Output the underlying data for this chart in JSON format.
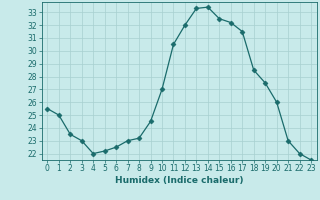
{
  "x": [
    0,
    1,
    2,
    3,
    4,
    5,
    6,
    7,
    8,
    9,
    10,
    11,
    12,
    13,
    14,
    15,
    16,
    17,
    18,
    19,
    20,
    21,
    22,
    23
  ],
  "y": [
    25.5,
    25.0,
    23.5,
    23.0,
    22.0,
    22.2,
    22.5,
    23.0,
    23.2,
    24.5,
    27.0,
    30.5,
    32.0,
    33.3,
    33.4,
    32.5,
    32.2,
    31.5,
    28.5,
    27.5,
    26.0,
    23.0,
    22.0,
    21.5
  ],
  "line_color": "#1a6b6b",
  "marker": "D",
  "marker_size": 2.5,
  "bg_color": "#c8eaea",
  "grid_color": "#a8d0d0",
  "xlabel": "Humidex (Indice chaleur)",
  "xlim": [
    -0.5,
    23.5
  ],
  "ylim": [
    21.5,
    33.8
  ],
  "yticks": [
    22,
    23,
    24,
    25,
    26,
    27,
    28,
    29,
    30,
    31,
    32,
    33
  ],
  "xticks": [
    0,
    1,
    2,
    3,
    4,
    5,
    6,
    7,
    8,
    9,
    10,
    11,
    12,
    13,
    14,
    15,
    16,
    17,
    18,
    19,
    20,
    21,
    22,
    23
  ],
  "tick_color": "#1a6b6b",
  "label_color": "#1a6b6b",
  "axis_color": "#1a6b6b",
  "tick_fontsize": 5.5,
  "label_fontsize": 6.5
}
